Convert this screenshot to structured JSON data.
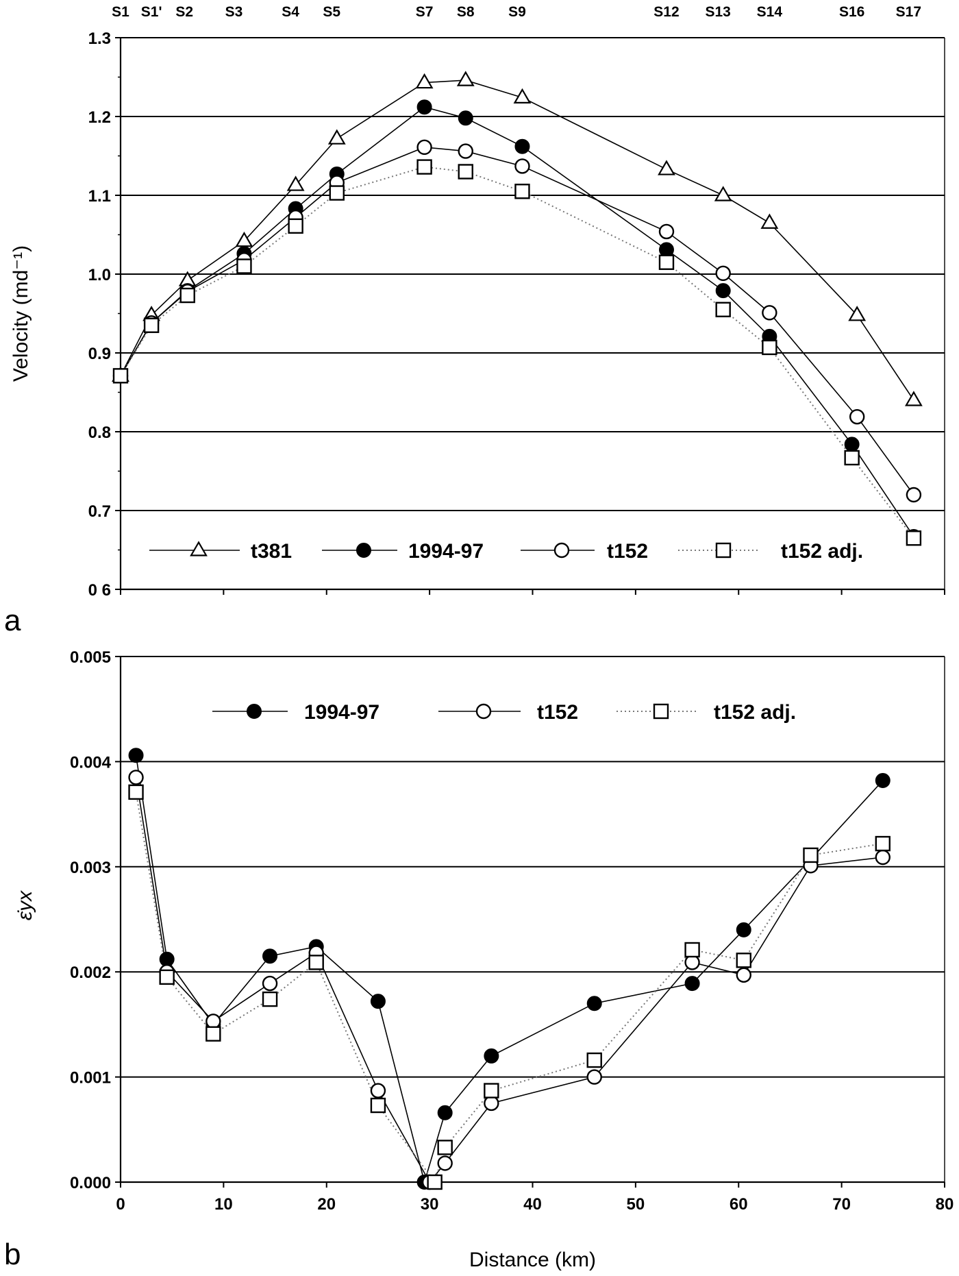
{
  "figure": {
    "panel_a_label": "a",
    "panel_b_label": "b"
  },
  "colors": {
    "axis": "#000000",
    "grid": "#000000",
    "t381": "#000000",
    "y1994_97": "#000000",
    "t152": "#000000",
    "t152_adj": "#777777",
    "marker_fill_open": "#ffffff",
    "marker_fill_solid": "#000000"
  },
  "chart_data": [
    {
      "type": "line",
      "panel": "a",
      "title": "",
      "xlabel": "",
      "ylabel": "Velocity (md⁻¹)",
      "xlim": [
        0,
        80
      ],
      "ylim": [
        0.6,
        1.3
      ],
      "y_ticks": [
        0.6,
        0.7,
        0.8,
        0.9,
        1.0,
        1.1,
        1.2,
        1.3
      ],
      "y_tick_labels": [
        "0 6",
        "0.7",
        "0.8",
        "0.9",
        "1.0",
        "1.1",
        "1.2",
        "1.3"
      ],
      "grid": "horizontal",
      "stations": [
        {
          "label": "S1",
          "x": 0
        },
        {
          "label": "S1'",
          "x": 3
        },
        {
          "label": "S2",
          "x": 6.2
        },
        {
          "label": "S3",
          "x": 11
        },
        {
          "label": "S4",
          "x": 16.5
        },
        {
          "label": "S5",
          "x": 20.5
        },
        {
          "label": "S7",
          "x": 29.5
        },
        {
          "label": "S8",
          "x": 33.5
        },
        {
          "label": "S9",
          "x": 38.5
        },
        {
          "label": "S12",
          "x": 53
        },
        {
          "label": "S13",
          "x": 58
        },
        {
          "label": "S14",
          "x": 63
        },
        {
          "label": "S16",
          "x": 71
        },
        {
          "label": "S17",
          "x": 76.5
        }
      ],
      "legend_position": "bottom",
      "series": [
        {
          "name": "t381",
          "marker": "triangle-open",
          "style": "solid",
          "x": [
            0,
            3,
            6.5,
            12,
            17,
            21,
            29.5,
            33.5,
            39,
            53,
            58.5,
            63,
            71.5,
            77
          ],
          "y": [
            0.871,
            0.948,
            0.992,
            1.042,
            1.113,
            1.172,
            1.243,
            1.246,
            1.224,
            1.133,
            1.1,
            1.065,
            0.948,
            0.84
          ]
        },
        {
          "name": "1994-97",
          "marker": "circle-filled",
          "style": "solid",
          "x": [
            0,
            3,
            6.5,
            12,
            17,
            21,
            29.5,
            33.5,
            39,
            53,
            58.5,
            63,
            71,
            77
          ],
          "y": [
            0.871,
            0.938,
            0.979,
            1.026,
            1.083,
            1.127,
            1.212,
            1.198,
            1.162,
            1.031,
            0.979,
            0.921,
            0.784,
            0.667
          ]
        },
        {
          "name": "t152",
          "marker": "circle-open",
          "style": "solid",
          "x": [
            0,
            3,
            6.5,
            12,
            17,
            21,
            29.5,
            33.5,
            39,
            53,
            58.5,
            63,
            71.5,
            77
          ],
          "y": [
            0.871,
            0.938,
            0.978,
            1.018,
            1.072,
            1.116,
            1.161,
            1.156,
            1.137,
            1.054,
            1.001,
            0.951,
            0.819,
            0.72
          ]
        },
        {
          "name": "t152 adj.",
          "marker": "square-open",
          "style": "dotted",
          "x": [
            0,
            3,
            6.5,
            12,
            17,
            21,
            29.5,
            33.5,
            39,
            53,
            58.5,
            63,
            71,
            77
          ],
          "y": [
            0.871,
            0.935,
            0.973,
            1.01,
            1.061,
            1.103,
            1.136,
            1.13,
            1.105,
            1.015,
            0.955,
            0.907,
            0.767,
            0.665
          ]
        }
      ]
    },
    {
      "type": "line",
      "panel": "b",
      "title": "",
      "xlabel": "Distance (km)",
      "ylabel": "ε̇yx",
      "xlim": [
        0,
        80
      ],
      "ylim": [
        0,
        0.005
      ],
      "x_ticks": [
        0,
        10,
        20,
        30,
        40,
        50,
        60,
        70,
        80
      ],
      "y_ticks": [
        0,
        0.001,
        0.002,
        0.003,
        0.004,
        0.005
      ],
      "y_tick_labels": [
        "0.000",
        "0.001",
        "0.002",
        "0.003",
        "0.004",
        "0.005"
      ],
      "grid": "horizontal",
      "legend_position": "top",
      "series": [
        {
          "name": "1994-97",
          "marker": "circle-filled",
          "style": "solid",
          "x": [
            1.5,
            4.5,
            9,
            14.5,
            19,
            25,
            29.5,
            31.5,
            36,
            46,
            55.5,
            60.5,
            67,
            74
          ],
          "y": [
            0.00406,
            0.00212,
            0.0015,
            0.00215,
            0.00224,
            0.00172,
            0.0,
            0.00066,
            0.0012,
            0.0017,
            0.00189,
            0.0024,
            0.00307,
            0.00382
          ]
        },
        {
          "name": "t152",
          "marker": "circle-open",
          "style": "solid",
          "x": [
            1.5,
            4.5,
            9,
            14.5,
            19,
            25,
            30,
            31.5,
            36,
            46,
            55.5,
            60.5,
            67,
            74
          ],
          "y": [
            0.00385,
            0.002,
            0.00153,
            0.00189,
            0.00218,
            0.00087,
            0.0,
            0.00018,
            0.00075,
            0.001,
            0.00209,
            0.00197,
            0.00301,
            0.00309
          ]
        },
        {
          "name": "t152 adj.",
          "marker": "square-open",
          "style": "dotted",
          "x": [
            1.5,
            4.5,
            9,
            14.5,
            19,
            25,
            30.5,
            31.5,
            36,
            46,
            55.5,
            60.5,
            67,
            74
          ],
          "y": [
            0.00371,
            0.00195,
            0.00141,
            0.00174,
            0.00209,
            0.00073,
            0.0,
            0.00033,
            0.00087,
            0.00116,
            0.00221,
            0.00211,
            0.00311,
            0.00322
          ]
        }
      ]
    }
  ]
}
